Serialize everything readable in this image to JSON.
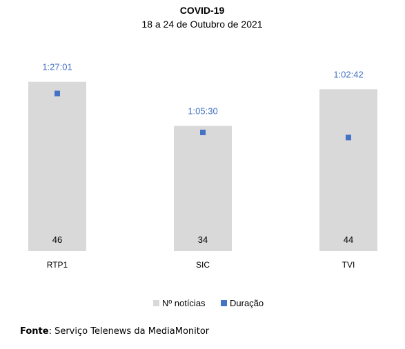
{
  "chart_data": {
    "type": "bar",
    "title": "COVID-19",
    "subtitle": "18 a 24 de Outubro de 2021",
    "categories": [
      "RTP1",
      "SIC",
      "TVI"
    ],
    "series": [
      {
        "name": "Nº notícias",
        "kind": "bar",
        "color": "#d9d9d9",
        "values": [
          46,
          34,
          44
        ]
      },
      {
        "name": "Duração",
        "kind": "marker",
        "color": "#4472c4",
        "values": [
          "1:27:01",
          "1:05:30",
          "1:02:42"
        ],
        "values_seconds": [
          5221,
          3930,
          3762
        ]
      }
    ],
    "ylim": [
      0,
      48
    ],
    "y2lim": [
      0,
      5850
    ],
    "grid": false,
    "legend": "bottom"
  },
  "source": {
    "label": "Fonte",
    "text": ": Serviço Telenews da MediaMonitor"
  }
}
